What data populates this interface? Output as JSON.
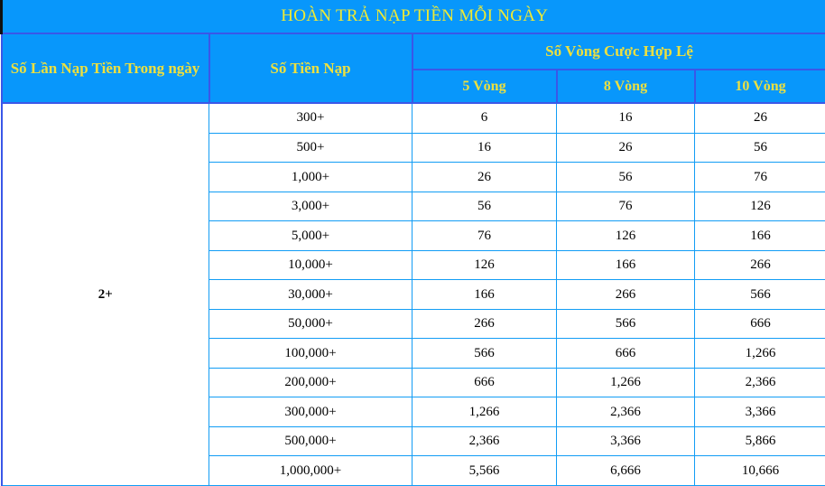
{
  "title": "HOÀN TRẢ NẠP TIỀN MỖI NGÀY",
  "table": {
    "col1_header": "Số Lần Nạp Tiền Trong ngày",
    "col2_header": "Số Tiền Nạp",
    "group_header": "Số Vòng Cược Hợp Lệ",
    "sub_headers": [
      "5 Vòng",
      "8 Vòng",
      "10 Vòng"
    ],
    "times_per_day": "2+",
    "rows": [
      {
        "deposit": "300+",
        "v5": "6",
        "v8": "16",
        "v10": "26"
      },
      {
        "deposit": "500+",
        "v5": "16",
        "v8": "26",
        "v10": "56"
      },
      {
        "deposit": "1,000+",
        "v5": "26",
        "v8": "56",
        "v10": "76"
      },
      {
        "deposit": "3,000+",
        "v5": "56",
        "v8": "76",
        "v10": "126"
      },
      {
        "deposit": "5,000+",
        "v5": "76",
        "v8": "126",
        "v10": "166"
      },
      {
        "deposit": "10,000+",
        "v5": "126",
        "v8": "166",
        "v10": "266"
      },
      {
        "deposit": "30,000+",
        "v5": "166",
        "v8": "266",
        "v10": "566"
      },
      {
        "deposit": "50,000+",
        "v5": "266",
        "v8": "566",
        "v10": "666"
      },
      {
        "deposit": "100,000+",
        "v5": "566",
        "v8": "666",
        "v10": "1,266"
      },
      {
        "deposit": "200,000+",
        "v5": "666",
        "v8": "1,266",
        "v10": "2,366"
      },
      {
        "deposit": "300,000+",
        "v5": "1,266",
        "v8": "2,366",
        "v10": "3,366"
      },
      {
        "deposit": "500,000+",
        "v5": "2,366",
        "v8": "3,366",
        "v10": "5,866"
      },
      {
        "deposit": "1,000,000+",
        "v5": "5,566",
        "v8": "6,666",
        "v10": "10,666"
      }
    ]
  },
  "colors": {
    "header_background": "#0897fb",
    "header_text_yellow": "#ede03f",
    "header_border_blue": "#3a57e8",
    "data_border_blue": "#129df5",
    "data_text": "#000000",
    "title_left_border": "#101010"
  }
}
